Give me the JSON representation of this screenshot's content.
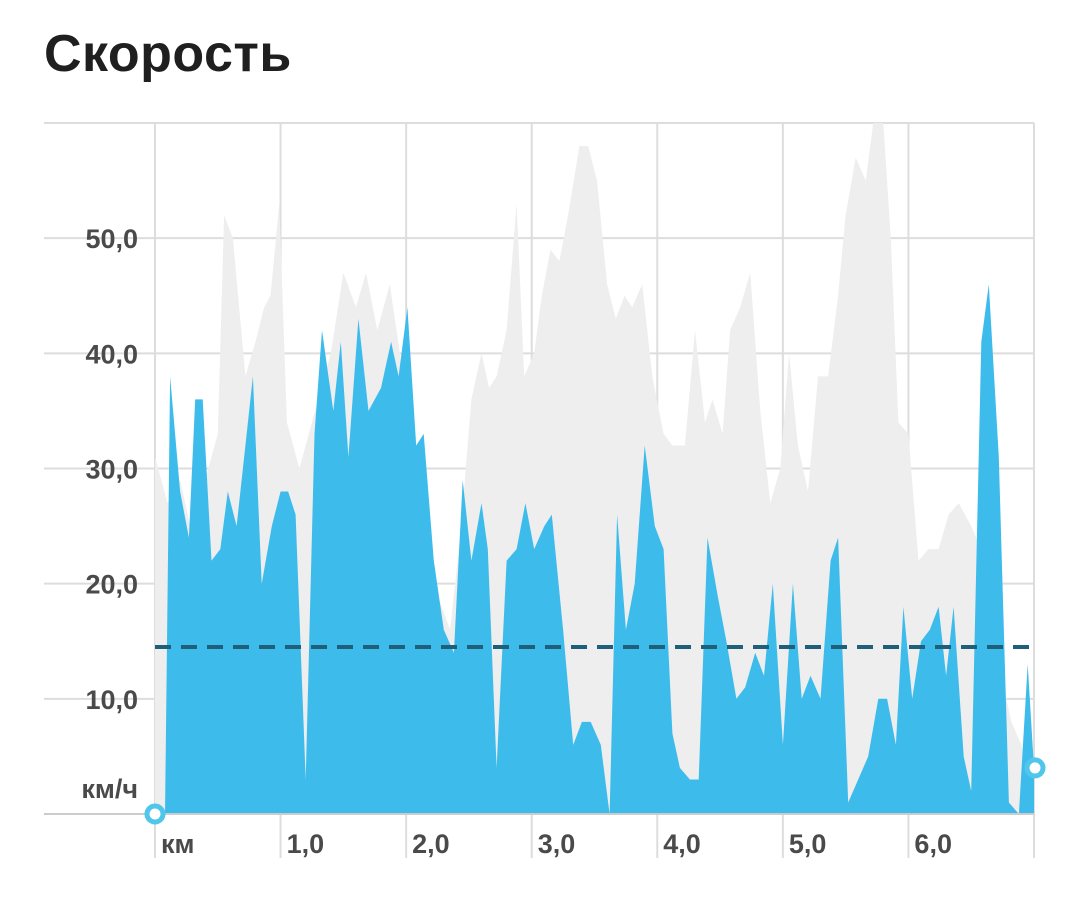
{
  "title": "Скорость",
  "chart_data": {
    "type": "area",
    "ylabel": "км/ч",
    "xlabel": "км",
    "xlim": [
      0,
      7.0
    ],
    "ylim": [
      0,
      60
    ],
    "x_ticks": [
      "1,0",
      "2,0",
      "3,0",
      "4,0",
      "5,0",
      "6,0"
    ],
    "y_ticks": [
      "10,0",
      "20,0",
      "30,0",
      "40,0",
      "50,0"
    ],
    "average": 14.5,
    "grid": true,
    "colors": {
      "primary": "#3dbcec",
      "secondary": "#eeeeee",
      "average": "#1f5f7a",
      "grid": "#dddddd",
      "marker": "#4fc6ea"
    },
    "series": [
      {
        "role": "background",
        "values": [
          [
            0.0,
            31
          ],
          [
            0.1,
            27
          ],
          [
            0.2,
            29
          ],
          [
            0.3,
            24
          ],
          [
            0.4,
            29
          ],
          [
            0.5,
            33
          ],
          [
            0.55,
            52
          ],
          [
            0.62,
            50
          ],
          [
            0.72,
            38
          ],
          [
            0.8,
            41
          ],
          [
            0.87,
            44
          ],
          [
            0.92,
            45
          ],
          [
            0.99,
            53
          ],
          [
            1.05,
            34
          ],
          [
            1.15,
            30
          ],
          [
            1.3,
            36
          ],
          [
            1.4,
            40
          ],
          [
            1.5,
            47
          ],
          [
            1.6,
            44
          ],
          [
            1.68,
            47
          ],
          [
            1.77,
            42
          ],
          [
            1.87,
            46
          ],
          [
            1.95,
            40
          ],
          [
            2.05,
            28
          ],
          [
            2.15,
            22
          ],
          [
            2.25,
            19
          ],
          [
            2.35,
            16
          ],
          [
            2.43,
            24
          ],
          [
            2.52,
            36
          ],
          [
            2.6,
            40
          ],
          [
            2.66,
            37
          ],
          [
            2.72,
            38
          ],
          [
            2.8,
            42
          ],
          [
            2.88,
            53
          ],
          [
            2.94,
            38
          ],
          [
            3.02,
            40
          ],
          [
            3.08,
            45
          ],
          [
            3.15,
            49
          ],
          [
            3.22,
            48
          ],
          [
            3.29,
            52
          ],
          [
            3.38,
            58
          ],
          [
            3.45,
            58
          ],
          [
            3.52,
            55
          ],
          [
            3.6,
            46
          ],
          [
            3.67,
            43
          ],
          [
            3.74,
            45
          ],
          [
            3.8,
            44
          ],
          [
            3.88,
            46
          ],
          [
            3.96,
            38
          ],
          [
            4.05,
            33
          ],
          [
            4.12,
            32
          ],
          [
            4.22,
            32
          ],
          [
            4.3,
            42
          ],
          [
            4.38,
            34
          ],
          [
            4.44,
            36
          ],
          [
            4.52,
            33
          ],
          [
            4.58,
            42
          ],
          [
            4.66,
            44
          ],
          [
            4.74,
            47
          ],
          [
            4.82,
            35
          ],
          [
            4.9,
            27
          ],
          [
            4.98,
            30
          ],
          [
            5.05,
            40
          ],
          [
            5.12,
            32
          ],
          [
            5.2,
            28
          ],
          [
            5.28,
            38
          ],
          [
            5.36,
            38
          ],
          [
            5.44,
            45
          ],
          [
            5.5,
            52
          ],
          [
            5.58,
            57
          ],
          [
            5.66,
            55
          ],
          [
            5.72,
            60
          ],
          [
            5.8,
            60
          ],
          [
            5.86,
            50
          ],
          [
            5.92,
            34
          ],
          [
            6.0,
            33
          ],
          [
            6.08,
            22
          ],
          [
            6.16,
            23
          ],
          [
            6.24,
            23
          ],
          [
            6.32,
            26
          ],
          [
            6.4,
            27
          ],
          [
            6.5,
            25
          ],
          [
            6.58,
            23
          ],
          [
            6.66,
            18
          ],
          [
            6.74,
            12
          ],
          [
            6.82,
            8
          ],
          [
            6.9,
            6
          ],
          [
            7.0,
            2
          ]
        ]
      },
      {
        "role": "speed",
        "values": [
          [
            0.0,
            0
          ],
          [
            0.08,
            0
          ],
          [
            0.12,
            38
          ],
          [
            0.2,
            28
          ],
          [
            0.27,
            24
          ],
          [
            0.32,
            36
          ],
          [
            0.38,
            36
          ],
          [
            0.45,
            22
          ],
          [
            0.52,
            23
          ],
          [
            0.58,
            28
          ],
          [
            0.65,
            25
          ],
          [
            0.72,
            32
          ],
          [
            0.78,
            38
          ],
          [
            0.85,
            20
          ],
          [
            0.93,
            25
          ],
          [
            1.0,
            28
          ],
          [
            1.06,
            28
          ],
          [
            1.12,
            26
          ],
          [
            1.2,
            3
          ],
          [
            1.27,
            33
          ],
          [
            1.33,
            42
          ],
          [
            1.42,
            35
          ],
          [
            1.48,
            41
          ],
          [
            1.54,
            31
          ],
          [
            1.62,
            43
          ],
          [
            1.7,
            35
          ],
          [
            1.8,
            37
          ],
          [
            1.88,
            41
          ],
          [
            1.94,
            38
          ],
          [
            2.01,
            44
          ],
          [
            2.08,
            32
          ],
          [
            2.14,
            33
          ],
          [
            2.22,
            22
          ],
          [
            2.3,
            16
          ],
          [
            2.38,
            14
          ],
          [
            2.45,
            29
          ],
          [
            2.52,
            22
          ],
          [
            2.6,
            27
          ],
          [
            2.65,
            23
          ],
          [
            2.72,
            4
          ],
          [
            2.8,
            22
          ],
          [
            2.88,
            23
          ],
          [
            2.95,
            27
          ],
          [
            3.02,
            23
          ],
          [
            3.1,
            25
          ],
          [
            3.16,
            26
          ],
          [
            3.25,
            16
          ],
          [
            3.33,
            6
          ],
          [
            3.4,
            8
          ],
          [
            3.47,
            8
          ],
          [
            3.55,
            6
          ],
          [
            3.62,
            0
          ],
          [
            3.68,
            26
          ],
          [
            3.75,
            16
          ],
          [
            3.82,
            20
          ],
          [
            3.9,
            32
          ],
          [
            3.98,
            25
          ],
          [
            4.05,
            23
          ],
          [
            4.12,
            7
          ],
          [
            4.18,
            4
          ],
          [
            4.26,
            3
          ],
          [
            4.33,
            3
          ],
          [
            4.4,
            24
          ],
          [
            4.48,
            19
          ],
          [
            4.55,
            15
          ],
          [
            4.63,
            10
          ],
          [
            4.7,
            11
          ],
          [
            4.78,
            14
          ],
          [
            4.85,
            12
          ],
          [
            4.92,
            20
          ],
          [
            5.0,
            6
          ],
          [
            5.08,
            20
          ],
          [
            5.15,
            10
          ],
          [
            5.22,
            12
          ],
          [
            5.3,
            10
          ],
          [
            5.38,
            22
          ],
          [
            5.44,
            24
          ],
          [
            5.52,
            1
          ],
          [
            5.6,
            3
          ],
          [
            5.68,
            5
          ],
          [
            5.76,
            10
          ],
          [
            5.83,
            10
          ],
          [
            5.9,
            6
          ],
          [
            5.96,
            18
          ],
          [
            6.03,
            10
          ],
          [
            6.1,
            15
          ],
          [
            6.17,
            16
          ],
          [
            6.24,
            18
          ],
          [
            6.3,
            12
          ],
          [
            6.36,
            18
          ],
          [
            6.44,
            5
          ],
          [
            6.5,
            2
          ],
          [
            6.58,
            41
          ],
          [
            6.64,
            46
          ],
          [
            6.72,
            31
          ],
          [
            6.8,
            1
          ],
          [
            6.88,
            0
          ],
          [
            6.95,
            13
          ],
          [
            7.0,
            4
          ]
        ]
      }
    ]
  }
}
